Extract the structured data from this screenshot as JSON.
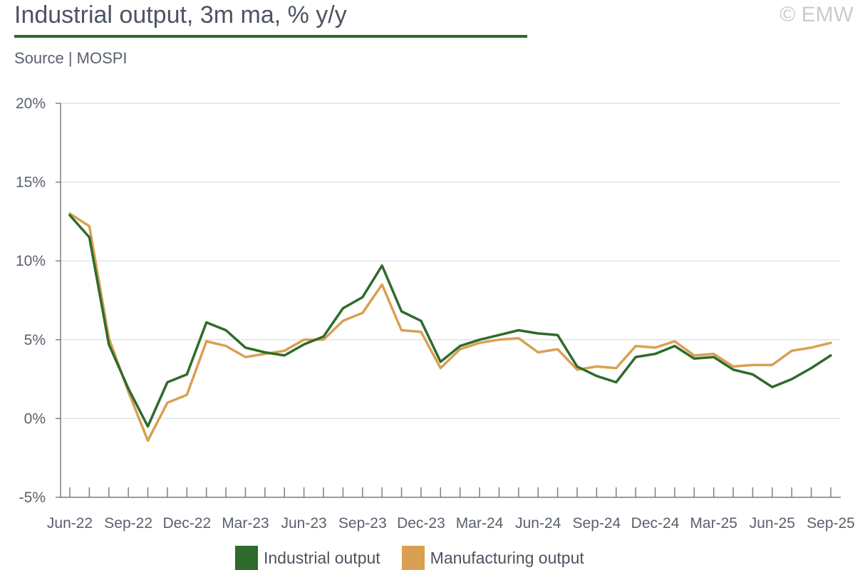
{
  "header": {
    "title": "Industrial output, 3m ma, % y/y",
    "source": "Source | MOSPI",
    "copyright": "© EMW"
  },
  "colors": {
    "industrial": "#2e6b2c",
    "manufacturing": "#d9a052",
    "grid": "#dde3ec",
    "axis": "#7a808a"
  },
  "chart_data": {
    "type": "line",
    "title": "Industrial output, 3m ma, % y/y",
    "xlabel": "",
    "ylabel": "",
    "ylim": [
      -5,
      20
    ],
    "yticks": [
      "20%",
      "15%",
      "10%",
      "5%",
      "0%",
      "-5%"
    ],
    "ytick_values": [
      20,
      15,
      10,
      5,
      0,
      -5
    ],
    "x_tick_labels": [
      "Jun-22",
      "Sep-22",
      "Dec-22",
      "Mar-23",
      "Jun-23",
      "Sep-23",
      "Dec-23",
      "Mar-24",
      "Jun-24",
      "Sep-24",
      "Dec-24",
      "Mar-25",
      "Jun-25",
      "Sep-25"
    ],
    "x": [
      "Jun-22",
      "Jul-22",
      "Aug-22",
      "Sep-22",
      "Oct-22",
      "Nov-22",
      "Dec-22",
      "Jan-23",
      "Feb-23",
      "Mar-23",
      "Apr-23",
      "May-23",
      "Jun-23",
      "Jul-23",
      "Aug-23",
      "Sep-23",
      "Oct-23",
      "Nov-23",
      "Dec-23",
      "Jan-24",
      "Feb-24",
      "Mar-24",
      "Apr-24",
      "May-24",
      "Jun-24",
      "Jul-24",
      "Aug-24",
      "Sep-24",
      "Oct-24",
      "Nov-24",
      "Dec-24",
      "Jan-25",
      "Feb-25",
      "Mar-25",
      "Apr-25",
      "May-25",
      "Jun-25",
      "Jul-25",
      "Aug-25",
      "Sep-25"
    ],
    "grid": true,
    "legend_position": "bottom",
    "series": [
      {
        "name": "Industrial output",
        "values": [
          12.9,
          11.5,
          4.7,
          1.9,
          -0.5,
          2.3,
          2.8,
          6.1,
          5.6,
          4.5,
          4.2,
          4.0,
          4.7,
          5.2,
          7.0,
          7.7,
          9.7,
          6.8,
          6.2,
          3.6,
          4.6,
          5.0,
          5.3,
          5.6,
          5.4,
          5.3,
          3.3,
          2.7,
          2.3,
          3.9,
          4.1,
          4.6,
          3.8,
          3.9,
          3.1,
          2.8,
          2.0,
          2.5,
          3.2,
          4.0
        ]
      },
      {
        "name": "Manufacturing output",
        "values": [
          13.0,
          12.2,
          5.1,
          1.7,
          -1.4,
          1.0,
          1.5,
          4.9,
          4.6,
          3.9,
          4.1,
          4.3,
          5.0,
          5.0,
          6.2,
          6.7,
          8.5,
          5.6,
          5.5,
          3.2,
          4.4,
          4.8,
          5.0,
          5.1,
          4.2,
          4.4,
          3.1,
          3.3,
          3.2,
          4.6,
          4.5,
          4.9,
          4.0,
          4.1,
          3.3,
          3.4,
          3.4,
          4.3,
          4.5,
          4.8
        ]
      }
    ]
  },
  "legend": {
    "items": [
      {
        "label": "Industrial output"
      },
      {
        "label": "Manufacturing output"
      }
    ]
  }
}
